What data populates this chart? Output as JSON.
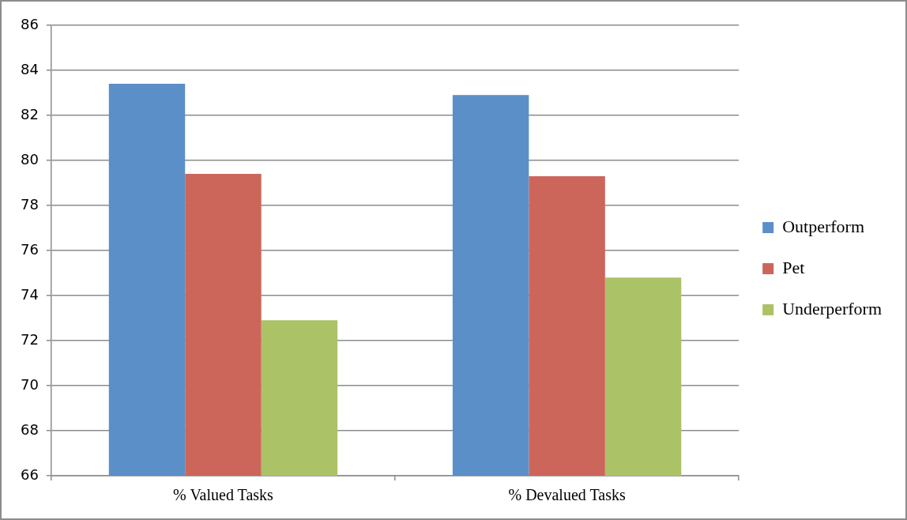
{
  "chart_data": {
    "type": "bar",
    "categories": [
      "% Valued Tasks",
      "% Devalued Tasks"
    ],
    "series": [
      {
        "name": "Outperform",
        "color": "#5b8fc7",
        "values": [
          83.4,
          82.9
        ]
      },
      {
        "name": "Pet",
        "color": "#cc665a",
        "values": [
          79.4,
          79.3
        ]
      },
      {
        "name": "Underperform",
        "color": "#abc266",
        "values": [
          72.9,
          74.8
        ]
      }
    ],
    "ylim": [
      66,
      86
    ],
    "yticks": [
      66,
      68,
      70,
      72,
      74,
      76,
      78,
      80,
      82,
      84,
      86
    ],
    "grid": "y",
    "legend": "right"
  }
}
